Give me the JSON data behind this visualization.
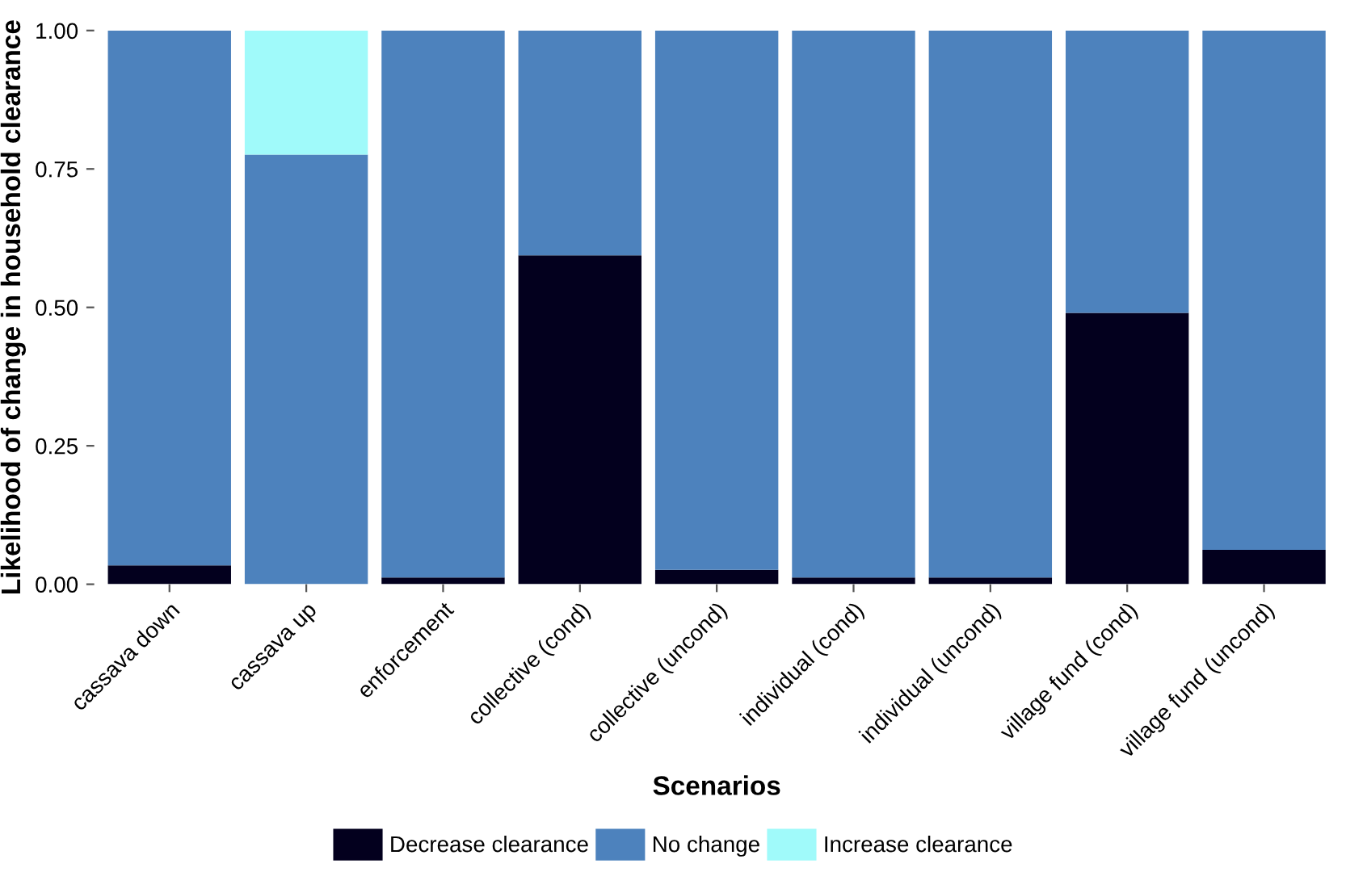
{
  "chart_data": {
    "type": "bar",
    "stacked": true,
    "xlabel": "Scenarios",
    "ylabel": "Likelihood of change in household clearance",
    "categories": [
      "cassava down",
      "cassava up",
      "enforcement",
      "collective (cond)",
      "collective (uncond)",
      "individual (cond)",
      "individual (uncond)",
      "village fund (cond)",
      "village fund (uncond)"
    ],
    "series": [
      {
        "name": "Decrease clearance",
        "color": "#03001e",
        "values": [
          0.034,
          0,
          0.012,
          0.594,
          0.026,
          0.012,
          0.012,
          0.49,
          0.062
        ]
      },
      {
        "name": "No change",
        "color": "#4d82bd",
        "values": [
          0.966,
          0.776,
          0.988,
          0.406,
          0.974,
          0.988,
          0.988,
          0.51,
          0.938
        ]
      },
      {
        "name": "Increase clearance",
        "color": "#a0fafa",
        "values": [
          0,
          0.224,
          0,
          0,
          0,
          0,
          0,
          0,
          0
        ]
      }
    ],
    "ylim": [
      0,
      1.0
    ],
    "yticks": [
      {
        "value": 0,
        "label": "0.00"
      },
      {
        "value": 0.25,
        "label": "0.25"
      },
      {
        "value": 0.5,
        "label": "0.50"
      },
      {
        "value": 0.75,
        "label": "0.75"
      },
      {
        "value": 1.0,
        "label": "1.00"
      }
    ],
    "grid": false,
    "legend": "bottom"
  }
}
